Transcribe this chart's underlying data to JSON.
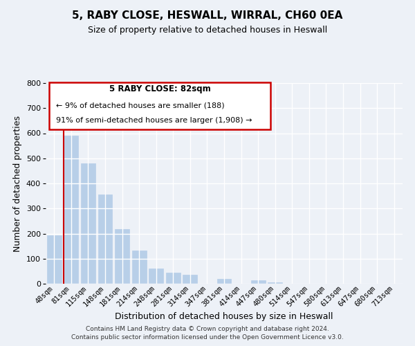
{
  "title": "5, RABY CLOSE, HESWALL, WIRRAL, CH60 0EA",
  "subtitle": "Size of property relative to detached houses in Heswall",
  "xlabel": "Distribution of detached houses by size in Heswall",
  "ylabel": "Number of detached properties",
  "bar_labels": [
    "48sqm",
    "81sqm",
    "115sqm",
    "148sqm",
    "181sqm",
    "214sqm",
    "248sqm",
    "281sqm",
    "314sqm",
    "347sqm",
    "381sqm",
    "414sqm",
    "447sqm",
    "480sqm",
    "514sqm",
    "547sqm",
    "580sqm",
    "613sqm",
    "647sqm",
    "680sqm",
    "713sqm"
  ],
  "bar_values": [
    193,
    590,
    480,
    355,
    218,
    133,
    62,
    44,
    37,
    0,
    18,
    0,
    13,
    6,
    0,
    0,
    0,
    0,
    0,
    0,
    0
  ],
  "bar_color": "#b8cfe8",
  "highlight_line_color": "#cc0000",
  "ylim": [
    0,
    800
  ],
  "yticks": [
    0,
    100,
    200,
    300,
    400,
    500,
    600,
    700,
    800
  ],
  "annotation_title": "5 RABY CLOSE: 82sqm",
  "annotation_line1": "← 9% of detached houses are smaller (188)",
  "annotation_line2": "91% of semi-detached houses are larger (1,908) →",
  "footer_line1": "Contains HM Land Registry data © Crown copyright and database right 2024.",
  "footer_line2": "Contains public sector information licensed under the Open Government Licence v3.0.",
  "background_color": "#edf1f7",
  "grid_color": "#ffffff",
  "title_fontsize": 11,
  "subtitle_fontsize": 9
}
